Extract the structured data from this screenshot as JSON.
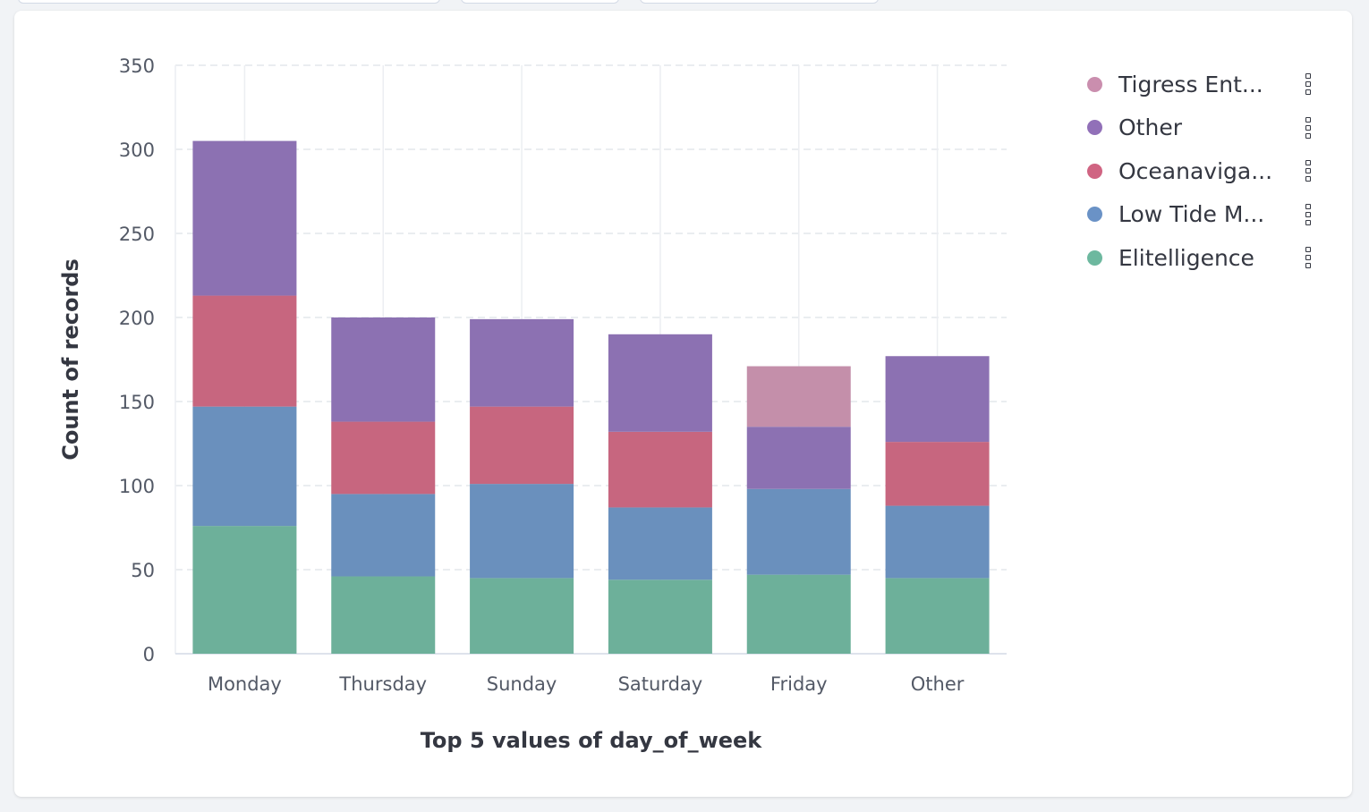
{
  "chart_data": {
    "type": "bar",
    "stacked": true,
    "xlabel": "Top 5 values of day_of_week",
    "ylabel": "Count of records",
    "ylim": [
      0,
      350
    ],
    "yticks": [
      0,
      50,
      100,
      150,
      200,
      250,
      300,
      350
    ],
    "grid": true,
    "legend_position": "right",
    "categories": [
      "Monday",
      "Thursday",
      "Sunday",
      "Saturday",
      "Friday",
      "Other"
    ],
    "series": [
      {
        "name": "Elitelligence",
        "color": "#6DB09A",
        "legend_color": "#6DB89F",
        "values": [
          76,
          46,
          45,
          44,
          47,
          45
        ]
      },
      {
        "name": "Low Tide M...",
        "color": "#6A90BD",
        "legend_color": "#6A92C6",
        "values": [
          71,
          49,
          56,
          43,
          51,
          43
        ]
      },
      {
        "name": "Oceanaviga...",
        "color": "#C7667F",
        "legend_color": "#D06482",
        "values": [
          66,
          43,
          46,
          45,
          0,
          38
        ]
      },
      {
        "name": "Other",
        "color": "#8C71B2",
        "legend_color": "#9170B8",
        "values": [
          92,
          62,
          52,
          58,
          37,
          51
        ]
      },
      {
        "name": "Tigress Ent...",
        "color": "#C48FAA",
        "legend_color": "#CA8EAE",
        "values": [
          0,
          0,
          0,
          0,
          36,
          0
        ]
      }
    ]
  }
}
